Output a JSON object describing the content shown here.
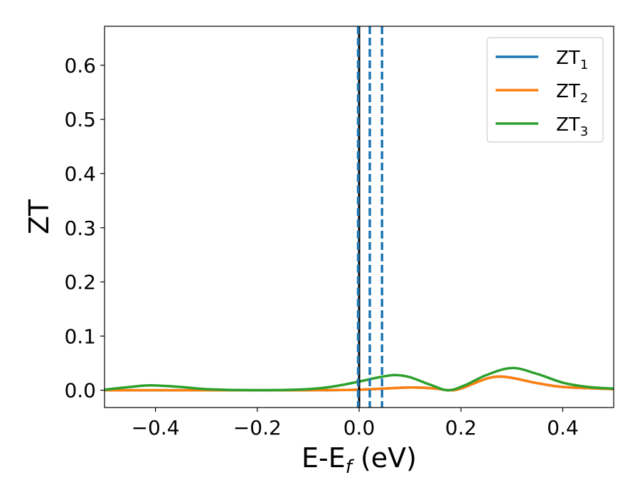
{
  "chart_data": {
    "type": "line",
    "xlabel": {
      "main": "E-E",
      "sub": "f",
      "tail": " (eV)"
    },
    "ylabel": "ZT",
    "xlim": [
      -0.5,
      0.5
    ],
    "ylim": [
      -0.032,
      0.672
    ],
    "x_ticks": [
      -0.4,
      -0.2,
      0.0,
      0.2,
      0.4
    ],
    "x_tick_labels": [
      "−0.4",
      "−0.2",
      "0.0",
      "0.2",
      "0.4"
    ],
    "y_ticks": [
      0.0,
      0.1,
      0.2,
      0.3,
      0.4,
      0.5,
      0.6
    ],
    "y_tick_labels": [
      "0.0",
      "0.1",
      "0.2",
      "0.3",
      "0.4",
      "0.5",
      "0.6"
    ],
    "grid": false,
    "legend_position": "top-right",
    "vlines": [
      {
        "x": 0.0,
        "color": "#000000",
        "style": "solid"
      },
      {
        "x": -0.002,
        "color": "#1f77b4",
        "style": "dashed"
      },
      {
        "x": 0.021,
        "color": "#1f77b4",
        "style": "dashed"
      },
      {
        "x": 0.045,
        "color": "#1f77b4",
        "style": "dashed"
      }
    ],
    "series": [
      {
        "name": "ZT",
        "name_sub": "1",
        "color": "#1f77b4",
        "x": [
          -0.5,
          -0.4,
          -0.3,
          -0.2,
          -0.1,
          0.0,
          0.1,
          0.15,
          0.175,
          0.2,
          0.27,
          0.35,
          0.4,
          0.5
        ],
        "y": [
          0.0,
          0.0,
          0.0,
          0.0,
          0.0,
          0.001,
          0.005,
          0.003,
          0.0,
          0.003,
          0.025,
          0.013,
          0.006,
          0.002
        ]
      },
      {
        "name": "ZT",
        "name_sub": "2",
        "color": "#ff7f0e",
        "x": [
          -0.5,
          -0.4,
          -0.3,
          -0.2,
          -0.1,
          0.0,
          0.1,
          0.15,
          0.175,
          0.2,
          0.27,
          0.35,
          0.4,
          0.5
        ],
        "y": [
          0.0,
          0.0,
          0.0,
          0.0,
          0.0,
          0.001,
          0.005,
          0.003,
          0.0,
          0.003,
          0.025,
          0.013,
          0.006,
          0.002
        ]
      },
      {
        "name": "ZT",
        "name_sub": "3",
        "color": "#2ca02c",
        "x": [
          -0.5,
          -0.45,
          -0.41,
          -0.35,
          -0.3,
          -0.2,
          -0.1,
          -0.05,
          0.0,
          0.04,
          0.07,
          0.1,
          0.14,
          0.175,
          0.21,
          0.25,
          0.3,
          0.35,
          0.4,
          0.45,
          0.5
        ],
        "y": [
          0.001,
          0.006,
          0.009,
          0.006,
          0.002,
          0.0,
          0.002,
          0.007,
          0.016,
          0.024,
          0.028,
          0.024,
          0.01,
          0.0,
          0.01,
          0.028,
          0.041,
          0.03,
          0.014,
          0.006,
          0.003
        ]
      }
    ]
  }
}
